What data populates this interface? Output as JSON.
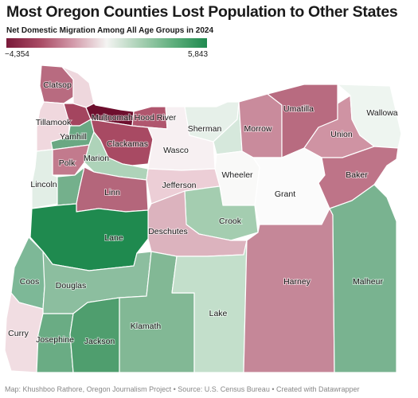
{
  "title": "Most Oregon Counties Lost Population to Other States",
  "legend": {
    "title": "Net Domestic Migration Among All Age Groups in 2024",
    "min_label": "−4,354",
    "max_label": "5,843",
    "colors": [
      "#7a1a3a",
      "#a84a63",
      "#d39aaa",
      "#f4f4f2",
      "#a8d0b4",
      "#5eae7c",
      "#1f8a4f"
    ]
  },
  "counties": [
    {
      "name": "Clatsop",
      "color": "#b86b80"
    },
    {
      "name": "Columbia",
      "color": "#eed7dd"
    },
    {
      "name": "Tillamook",
      "color": "#f0d8de"
    },
    {
      "name": "Washington",
      "color": "#a4455f"
    },
    {
      "name": "Multnomah",
      "color": "#6e0f2e"
    },
    {
      "name": "Hood River",
      "color": "#b0566e"
    },
    {
      "name": "Yamhill",
      "color": "#6aa883"
    },
    {
      "name": "Clackamas",
      "color": "#a84a63"
    },
    {
      "name": "Polk",
      "color": "#c27a8d"
    },
    {
      "name": "Marion",
      "color": "#aed3b9"
    },
    {
      "name": "Lincoln",
      "color": "#e2eee6"
    },
    {
      "name": "Benton",
      "color": "#74b08c"
    },
    {
      "name": "Linn",
      "color": "#b4667b"
    },
    {
      "name": "Wasco",
      "color": "#f7f0f2"
    },
    {
      "name": "Sherman",
      "color": "#e6f0e9"
    },
    {
      "name": "Gilliam",
      "color": "#d6e8dc"
    },
    {
      "name": "Morrow",
      "color": "#c98b9c"
    },
    {
      "name": "Umatilla",
      "color": "#b86b80"
    },
    {
      "name": "Union",
      "color": "#cf93a3"
    },
    {
      "name": "Wallowa",
      "color": "#eef5f0"
    },
    {
      "name": "Wheeler",
      "color": "#f9f9f8"
    },
    {
      "name": "Grant",
      "color": "#fbfbfb"
    },
    {
      "name": "Baker",
      "color": "#be7488"
    },
    {
      "name": "Jefferson",
      "color": "#ecced6"
    },
    {
      "name": "Crook",
      "color": "#a4cdb0"
    },
    {
      "name": "Deschutes",
      "color": "#dcb3be"
    },
    {
      "name": "Lane",
      "color": "#1f8a4f"
    },
    {
      "name": "Coos",
      "color": "#7db897"
    },
    {
      "name": "Douglas",
      "color": "#8cbe9f"
    },
    {
      "name": "Curry",
      "color": "#f1dde2"
    },
    {
      "name": "Josephine",
      "color": "#6aac84"
    },
    {
      "name": "Jackson",
      "color": "#4f9e6e"
    },
    {
      "name": "Klamath",
      "color": "#82b895"
    },
    {
      "name": "Lake",
      "color": "#c3dfcb"
    },
    {
      "name": "Harney",
      "color": "#c58798"
    },
    {
      "name": "Malheur",
      "color": "#79b390"
    }
  ],
  "footer": "Map: Khushboo Rathore, Oregon Journalism Project • Source: U.S. Census Bureau • Created with Datawrapper"
}
